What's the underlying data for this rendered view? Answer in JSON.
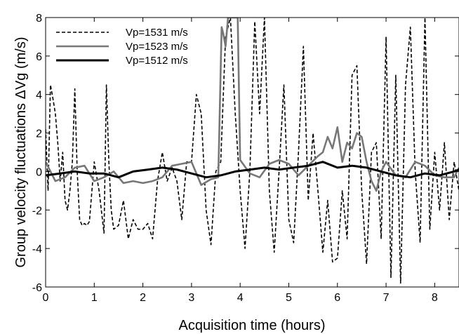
{
  "chart_data": {
    "type": "line",
    "xlabel": "Acquisition time (hours)",
    "ylabel": "Group velocity fluctuations ΔVg (m/s)",
    "xlim": [
      0,
      8.5
    ],
    "ylim": [
      -6,
      8
    ],
    "xticks": [
      "0",
      "1",
      "2",
      "3",
      "4",
      "5",
      "6",
      "7",
      "8"
    ],
    "yticks": [
      "-6",
      "-4",
      "-2",
      "0",
      "2",
      "4",
      "6",
      "8"
    ],
    "grid": false,
    "legend_position": "top-left",
    "series": [
      {
        "name": "Vp=1531 m/s",
        "style": "dashed",
        "color": "#000000",
        "x": [
          0,
          0.05,
          0.1,
          0.15,
          0.2,
          0.25,
          0.3,
          0.35,
          0.4,
          0.45,
          0.5,
          0.55,
          0.6,
          0.65,
          0.7,
          0.75,
          0.8,
          0.85,
          0.9,
          1.0,
          1.1,
          1.2,
          1.25,
          1.3,
          1.35,
          1.4,
          1.5,
          1.6,
          1.7,
          1.8,
          1.9,
          2.0,
          2.1,
          2.2,
          2.3,
          2.4,
          2.5,
          2.6,
          2.7,
          2.8,
          2.9,
          3.0,
          3.1,
          3.2,
          3.3,
          3.4,
          3.5,
          3.6,
          3.7,
          3.8,
          3.9,
          4.0,
          4.1,
          4.2,
          4.3,
          4.4,
          4.5,
          4.6,
          4.7,
          4.8,
          4.9,
          5.0,
          5.1,
          5.2,
          5.3,
          5.4,
          5.5,
          5.6,
          5.7,
          5.8,
          5.9,
          6.0,
          6.1,
          6.2,
          6.3,
          6.4,
          6.5,
          6.6,
          6.7,
          6.8,
          6.9,
          7.0,
          7.1,
          7.2,
          7.3,
          7.4,
          7.5,
          7.6,
          7.7,
          7.8,
          7.9,
          8.0,
          8.1,
          8.2,
          8.3,
          8.4,
          8.5
        ],
        "y": [
          2.2,
          -1.0,
          4.5,
          3.8,
          3.0,
          1.5,
          -0.5,
          1.0,
          -1.5,
          -2.0,
          -1.0,
          0.5,
          4.3,
          0.0,
          -2.5,
          -2.8,
          -2.7,
          -2.8,
          -2.6,
          0.5,
          -1.0,
          -3.2,
          4.5,
          0.5,
          -2.0,
          -3.0,
          -2.8,
          -1.5,
          -3.5,
          -2.5,
          -3.0,
          -3.0,
          -2.7,
          -3.5,
          -0.5,
          1.0,
          -0.5,
          0.2,
          -0.5,
          -2.5,
          0.5,
          0.5,
          4.0,
          3.0,
          -2.0,
          -3.8,
          0.0,
          0.5,
          7.0,
          8.0,
          3.0,
          -1.0,
          -4.0,
          0.0,
          7.8,
          3.0,
          8.0,
          -1.0,
          -4.2,
          0.0,
          4.5,
          -2.5,
          -3.7,
          1.0,
          6.5,
          -1.5,
          2.0,
          -1.0,
          -4.2,
          -1.5,
          -4.7,
          -4.5,
          -1.0,
          -3.5,
          5.0,
          5.5,
          -1.0,
          -4.8,
          1.0,
          1.5,
          -3.5,
          7.0,
          -5.5,
          5.0,
          -5.8,
          4.5,
          7.5,
          0.0,
          -3.7,
          8.0,
          -3.0,
          1.0,
          -2.0,
          1.5,
          -2.5,
          0.5,
          -1.0
        ]
      },
      {
        "name": "Vp=1523 m/s",
        "style": "solid",
        "color": "#777777",
        "x": [
          0,
          0.2,
          0.4,
          0.6,
          0.8,
          1.0,
          1.2,
          1.4,
          1.6,
          1.8,
          2.0,
          2.2,
          2.4,
          2.6,
          2.8,
          3.0,
          3.2,
          3.4,
          3.55,
          3.62,
          3.65,
          3.7,
          3.75,
          3.8,
          3.85,
          3.9,
          3.95,
          4.0,
          4.2,
          4.4,
          4.6,
          4.8,
          5.0,
          5.2,
          5.4,
          5.6,
          5.7,
          5.8,
          5.9,
          6.0,
          6.1,
          6.2,
          6.3,
          6.4,
          6.5,
          6.6,
          6.7,
          6.8,
          6.9,
          7.0,
          7.2,
          7.4,
          7.6,
          7.8,
          8.0,
          8.2,
          8.4,
          8.5
        ],
        "y": [
          0.5,
          -0.5,
          -0.3,
          0.2,
          0.3,
          -0.5,
          -0.3,
          0.0,
          -0.6,
          -0.5,
          -0.6,
          -0.5,
          -0.3,
          0.3,
          0.4,
          0.5,
          -0.7,
          -0.4,
          -0.3,
          7.5,
          7.2,
          6.5,
          8.0,
          8.0,
          8.0,
          8.0,
          8.0,
          0.6,
          -0.1,
          -0.3,
          0.4,
          0.6,
          0.4,
          -0.2,
          0.3,
          0.8,
          1.0,
          1.8,
          1.2,
          2.3,
          0.5,
          1.5,
          1.2,
          2.0,
          1.8,
          0.5,
          -0.5,
          -1.0,
          0.0,
          0.5,
          -0.2,
          -0.3,
          0.5,
          0.3,
          -0.2,
          -0.3,
          -0.3,
          0.2
        ]
      },
      {
        "name": "Vp=1512 m/s",
        "style": "solid",
        "color": "#000000",
        "x": [
          0,
          0.3,
          0.6,
          0.9,
          1.2,
          1.5,
          1.8,
          2.1,
          2.4,
          2.7,
          3.0,
          3.3,
          3.6,
          3.9,
          4.2,
          4.5,
          4.8,
          5.1,
          5.4,
          5.7,
          6.0,
          6.3,
          6.6,
          6.9,
          7.2,
          7.5,
          7.8,
          8.1,
          8.4,
          8.5
        ],
        "y": [
          -0.2,
          -0.1,
          0.0,
          -0.1,
          -0.1,
          -0.3,
          0.0,
          0.1,
          0.2,
          0.1,
          -0.1,
          -0.3,
          -0.2,
          0.0,
          0.1,
          0.2,
          0.1,
          0.2,
          0.3,
          0.5,
          0.2,
          0.3,
          0.2,
          0.0,
          -0.2,
          -0.3,
          -0.1,
          -0.2,
          0.0,
          0.1
        ]
      }
    ]
  }
}
